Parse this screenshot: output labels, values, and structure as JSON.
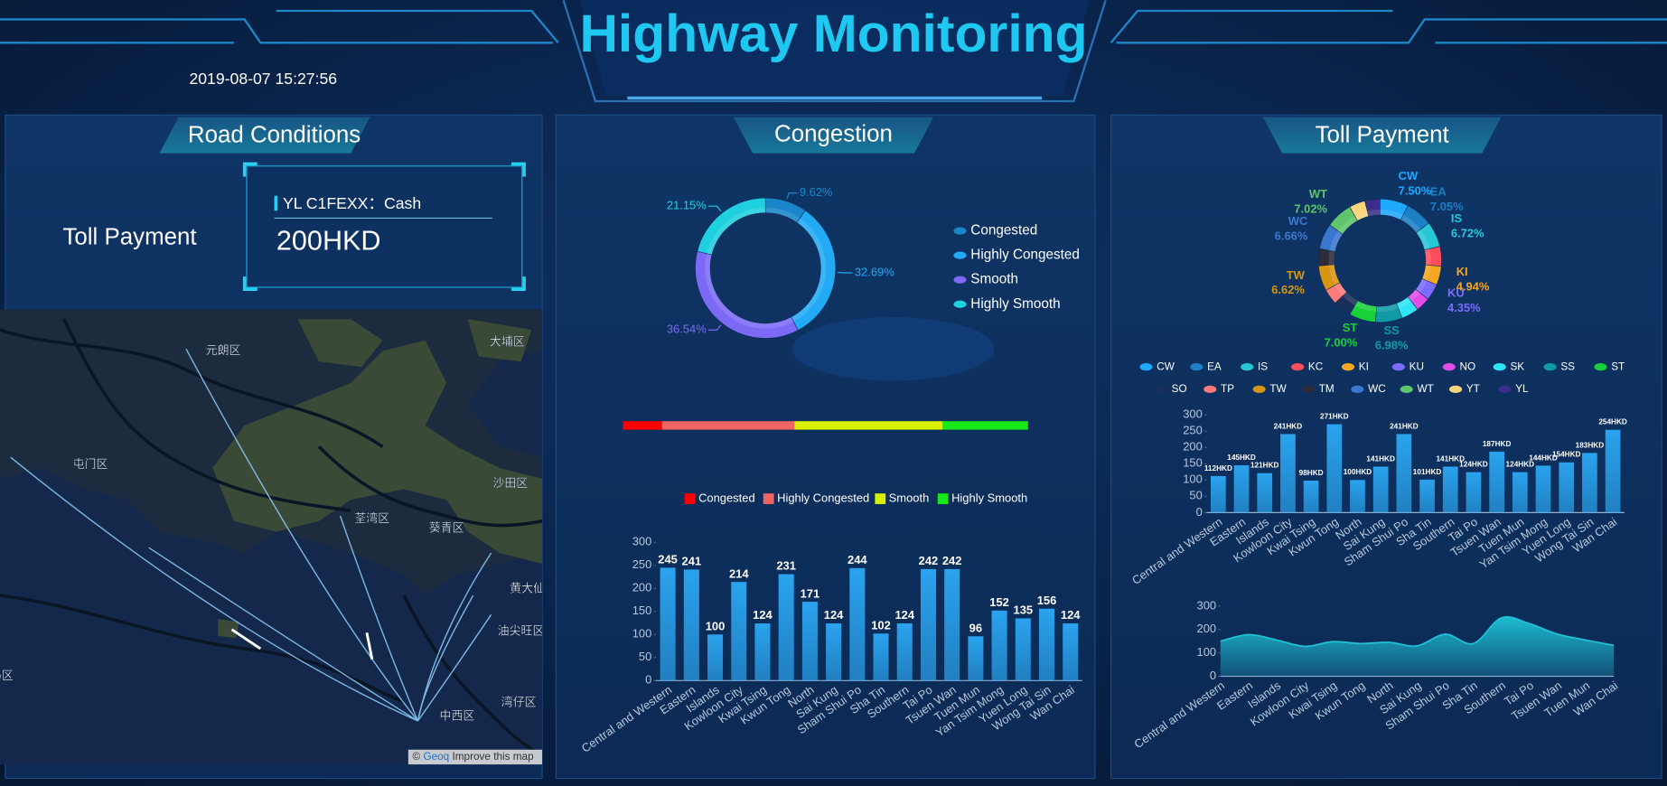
{
  "header": {
    "title": "Highway Monitoring",
    "datetime": "2019-08-07 15:27:56"
  },
  "panels": {
    "road": {
      "title": "Road Conditions",
      "toll_label": "Toll Payment",
      "card": {
        "plate": "YL C1FEXX：Cash",
        "amount": "200HKD"
      },
      "map": {
        "labels": [
          "元朗区",
          "大埔区",
          "屯门区",
          "沙田区",
          "荃湾区",
          "葵青区",
          "黄大仙",
          "油尖旺区",
          "湾仔区",
          "中西区",
          "离岛区"
        ],
        "credit": {
          "symbol": "©",
          "link": "Geoq",
          "text": "Improve this map"
        }
      }
    },
    "congestion": {
      "title": "Congestion"
    },
    "toll": {
      "title": "Toll Payment"
    }
  },
  "chart_data": [
    {
      "type": "donut",
      "categories": [
        "Congested",
        "Highly Congested",
        "Smooth",
        "Highly Smooth"
      ],
      "values": [
        9.62,
        32.69,
        36.54,
        21.15
      ],
      "value_labels": [
        "9.62%",
        "32.69%",
        "36.54%",
        "21.15%"
      ],
      "colors": [
        "#1a86c9",
        "#22aaf5",
        "#7c6af7",
        "#1fd0e0"
      ],
      "legend": "right"
    },
    {
      "type": "stackedbar",
      "categories": [
        "Congested",
        "Highly Congested",
        "Smooth",
        "Highly Smooth"
      ],
      "values": [
        9.62,
        32.69,
        36.54,
        21.15
      ],
      "colors": [
        "#ff0000",
        "#f06464",
        "#d8f000",
        "#18e818"
      ],
      "legend": "bottom"
    },
    {
      "type": "bar",
      "categories": [
        "Central and Western",
        "Eastern",
        "Islands",
        "Kowloon City",
        "Kwai Tsing",
        "Kwun Tong",
        "North",
        "Sai Kung",
        "Sham Shui Po",
        "Sha Tin",
        "Southern",
        "Tai Po",
        "Tsuen Wan",
        "Tuen Mun",
        "Yan Tsim Mong",
        "Yuen Long",
        "Wong Tai Sin",
        "Wan Chai"
      ],
      "values": [
        245,
        241,
        100,
        214,
        124,
        231,
        171,
        124,
        244,
        102,
        124,
        242,
        242,
        96,
        152,
        135,
        156,
        124
      ],
      "color": "#2aa3ee",
      "ylim": [
        0,
        300
      ],
      "yticks": [
        0,
        50,
        100,
        150,
        200,
        250,
        300
      ]
    },
    {
      "type": "donut",
      "categories": [
        "CW",
        "EA",
        "IS",
        "KC",
        "KI",
        "KU",
        "NO",
        "SK",
        "SS",
        "ST",
        "SO",
        "TP",
        "TW",
        "TM",
        "WC",
        "WT",
        "YT",
        "YL"
      ],
      "values": [
        7.5,
        7.05,
        6.72,
        5.2,
        4.94,
        4.35,
        3.8,
        4.6,
        6.98,
        7.0,
        4.8,
        4.1,
        6.62,
        4.5,
        6.66,
        7.02,
        4.2,
        3.96
      ],
      "value_labels": [
        "7.50%",
        "7.05%",
        "6.72%",
        null,
        "4.94%",
        "4.35%",
        null,
        null,
        "6.98%",
        "7.00%",
        null,
        null,
        "6.62%",
        null,
        "6.66%",
        "7.02%",
        null,
        null
      ],
      "colors": [
        "#1fa8ff",
        "#1d7fc4",
        "#27c7d6",
        "#ff4d5e",
        "#f5a623",
        "#7b6cff",
        "#e24de8",
        "#2ee6f5",
        "#0f9aa6",
        "#18d13a",
        "#1a2f5c",
        "#ff7a7a",
        "#d69612",
        "#2c2c3a",
        "#3a78d0",
        "#5fc46a",
        "#f7d67a",
        "#3b2d8a"
      ],
      "legend": "bottom"
    },
    {
      "type": "bar",
      "categories": [
        "Central and Western",
        "Eastern",
        "Islands",
        "Kowloon City",
        "Kwai Tsing",
        "Kwun Tong",
        "North",
        "Sai Kung",
        "Sham Shui Po",
        "Sha Tin",
        "Southern",
        "Tai Po",
        "Tsuen Wan",
        "Tuen Mun",
        "Yan Tsim Mong",
        "Yuen Long",
        "Wong Tai Sin",
        "Wan Chai"
      ],
      "values": [
        112,
        145,
        121,
        241,
        98,
        271,
        100,
        141,
        241,
        101,
        141,
        124,
        187,
        124,
        144,
        154,
        183,
        254
      ],
      "value_labels": [
        "112HKD",
        "145HKD",
        "121HKD",
        "241HKD",
        "98HKD",
        "271HKD",
        "100HKD",
        "141HKD",
        "241HKD",
        "101HKD",
        "141HKD",
        "124HKD",
        "187HKD",
        "124HKD",
        "144HKD",
        "154HKD",
        "183HKD",
        "254HKD"
      ],
      "color": "#2aa3ee",
      "ylim": [
        0,
        300
      ],
      "yticks": [
        0,
        50,
        100,
        150,
        200,
        250,
        300
      ]
    },
    {
      "type": "area",
      "categories": [
        "Central and Western",
        "Eastern",
        "Islands",
        "Kowloon City",
        "Kwai Tsing",
        "Kwun Tong",
        "North",
        "Sai Kung",
        "Sham Shui Po",
        "Sha Tin",
        "Southern",
        "Tai Po",
        "Tsuen Wan",
        "Tuen Mun",
        "Wan Chai"
      ],
      "values": [
        150,
        178,
        155,
        128,
        148,
        140,
        145,
        130,
        180,
        140,
        250,
        225,
        180,
        155,
        132
      ],
      "color": "#1fc2d6",
      "ylim": [
        0,
        300
      ],
      "yticks": [
        0,
        100,
        200,
        300
      ]
    }
  ]
}
